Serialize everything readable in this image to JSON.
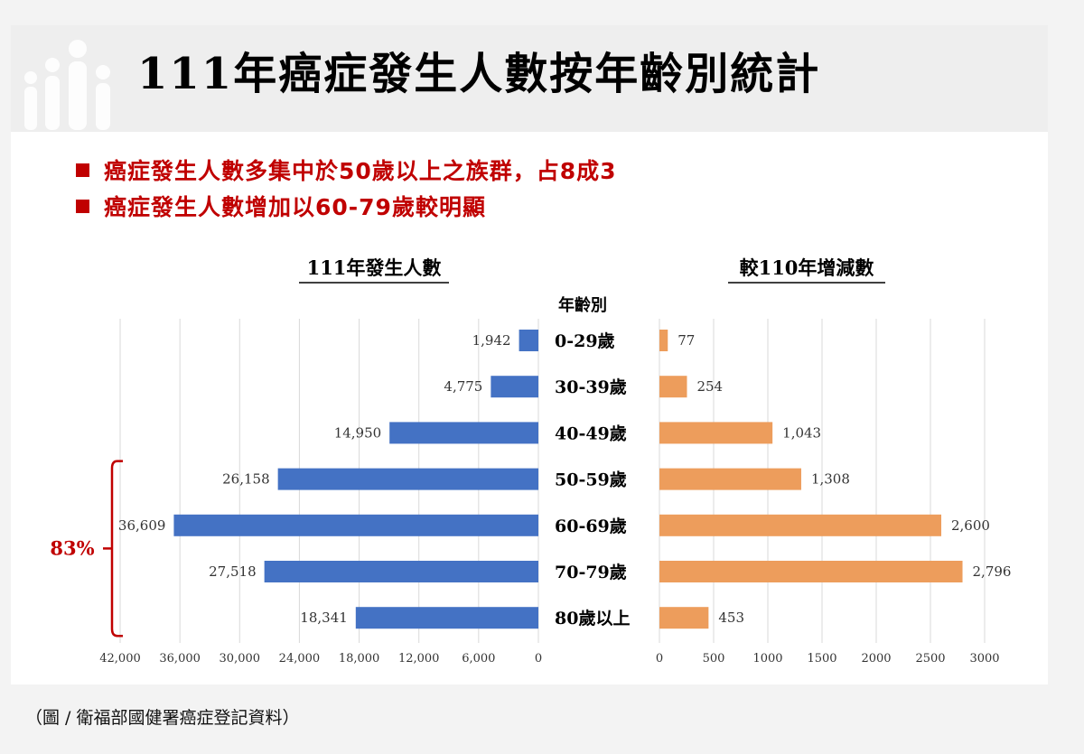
{
  "title": "111年癌症發生人數按年齡別統計",
  "bullets": [
    "癌症發生人數多集中於50歲以上之族群，占8成3",
    "癌症發生人數增加以60-79歲較明顯"
  ],
  "caption": "（圖 / 衛福部國健署癌症登記資料）",
  "colors": {
    "left_bar": "#4472c4",
    "right_bar": "#ed9d5c",
    "accent": "#c00000",
    "grid": "#d9d9d9"
  },
  "icons": {
    "logo": "people-group-icon",
    "bullet": "square-bullet-icon"
  },
  "chart_data": {
    "type": "bar",
    "orientation": "horizontal",
    "category_header": "年齡別",
    "categories": [
      "0-29歲",
      "30-39歲",
      "40-49歲",
      "50-59歲",
      "60-69歲",
      "70-79歲",
      "80歲以上"
    ],
    "charts": [
      {
        "title": "111年發生人數",
        "direction": "left",
        "values": [
          1942,
          4775,
          14950,
          26158,
          36609,
          27518,
          18341
        ],
        "value_labels": [
          "1,942",
          "4,775",
          "14,950",
          "26,158",
          "36,609",
          "27,518",
          "18,341"
        ],
        "xlim": [
          0,
          42000
        ],
        "ticks": [
          0,
          6000,
          12000,
          18000,
          24000,
          30000,
          36000,
          42000
        ],
        "tick_labels": [
          "0",
          "6,000",
          "12,000",
          "18,000",
          "24,000",
          "30,000",
          "36,000",
          "42,000"
        ],
        "grid": true
      },
      {
        "title": "較110年增減數",
        "direction": "right",
        "values": [
          77,
          254,
          1043,
          1308,
          2600,
          2796,
          453
        ],
        "value_labels": [
          "77",
          "254",
          "1,043",
          "1,308",
          "2,600",
          "2,796",
          "453"
        ],
        "xlim": [
          0,
          3000
        ],
        "ticks": [
          0,
          500,
          1000,
          1500,
          2000,
          2500,
          3000
        ],
        "tick_labels": [
          "0",
          "500",
          "1000",
          "1500",
          "2000",
          "2500",
          "3000"
        ],
        "grid": true
      }
    ],
    "annotation": {
      "text": "83%",
      "categories_bracketed": [
        "50-59歲",
        "60-69歲",
        "70-79歲",
        "80歲以上"
      ]
    }
  }
}
